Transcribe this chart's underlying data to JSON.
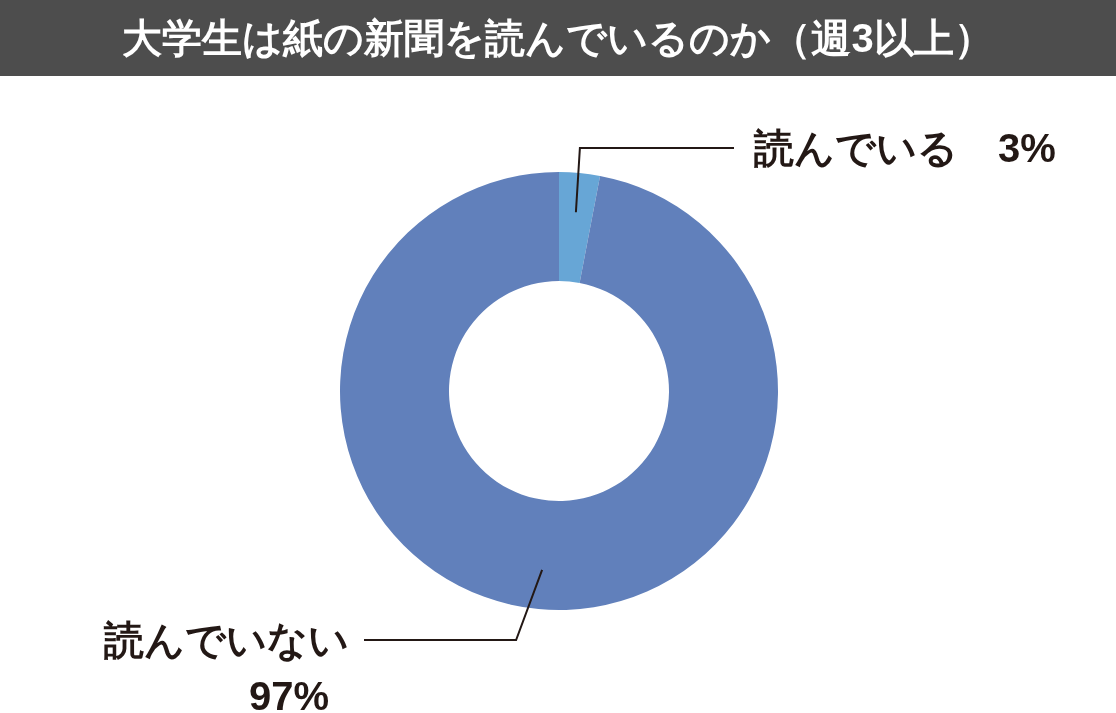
{
  "chart_data": {
    "type": "donut",
    "title": "大学生は紙の新聞を読んでいるのか（週3以上）",
    "categories": [
      "読んでいる",
      "読んでいない"
    ],
    "values": [
      3,
      97
    ],
    "colors": [
      "#67a6d6",
      "#6180bb"
    ],
    "value_labels": [
      "3%",
      "97%"
    ]
  }
}
